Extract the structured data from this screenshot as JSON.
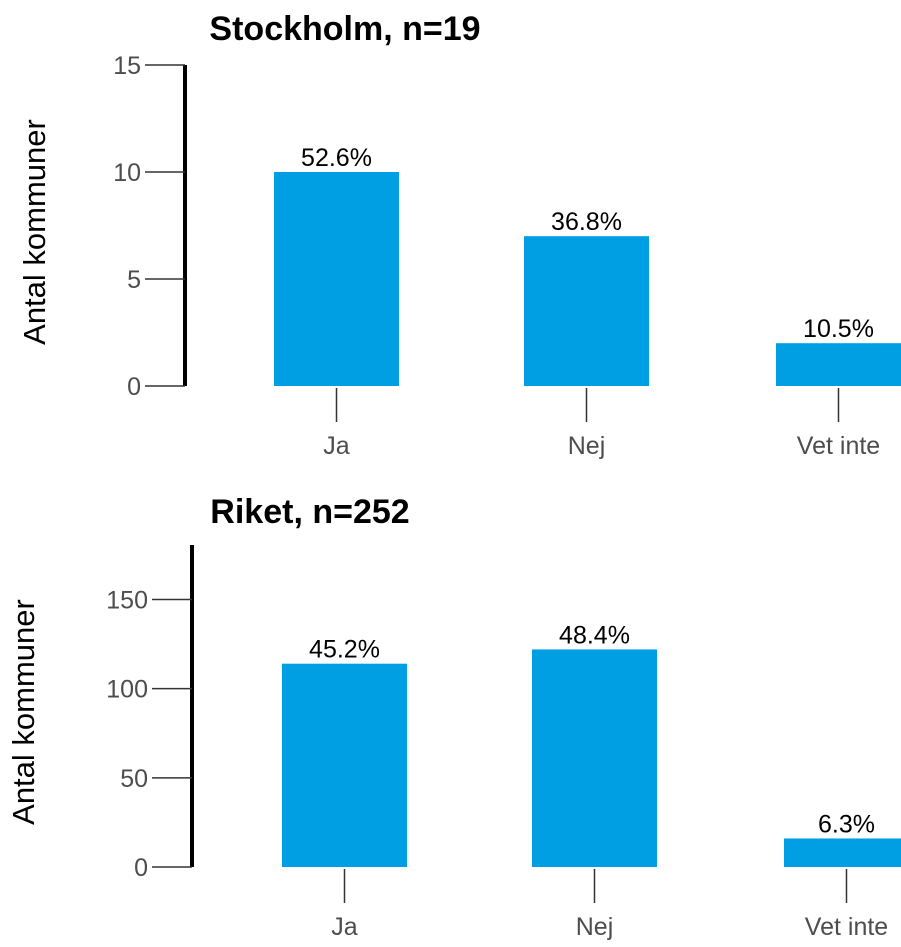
{
  "chart_data": [
    {
      "type": "bar",
      "title": "Stockholm, n=19",
      "ylabel": "Antal kommuner",
      "xlabel": "",
      "categories": [
        "Ja",
        "Nej",
        "Vet inte"
      ],
      "values": [
        10,
        7,
        2
      ],
      "data_labels": [
        "52.6%",
        "36.8%",
        "10.5%"
      ],
      "yticks": [
        0,
        5,
        10,
        15
      ],
      "ylim": [
        0,
        15
      ],
      "grid": false,
      "bar_color": "#009fe3"
    },
    {
      "type": "bar",
      "title": "Riket, n=252",
      "ylabel": "Antal kommuner",
      "xlabel": "",
      "categories": [
        "Ja",
        "Nej",
        "Vet inte"
      ],
      "values": [
        114,
        122,
        16
      ],
      "data_labels": [
        "45.2%",
        "48.4%",
        "6.3%"
      ],
      "yticks": [
        0,
        50,
        100,
        150
      ],
      "ylim": [
        0,
        180
      ],
      "grid": false,
      "bar_color": "#009fe3"
    }
  ]
}
